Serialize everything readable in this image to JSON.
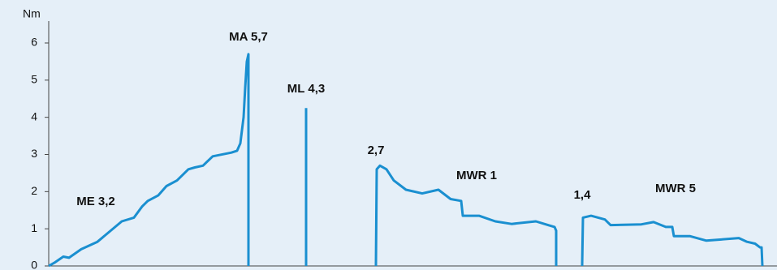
{
  "chart_data": {
    "type": "line",
    "y_label": "Nm",
    "annotations": [
      "MA 5,7",
      "ML 4,3",
      "2,7",
      "MWR 1",
      "1,4",
      "MWR 5",
      "ME 3,2"
    ],
    "x": [
      0,
      8,
      18,
      25,
      40,
      60,
      90,
      105,
      115,
      122,
      135,
      145,
      158,
      172,
      180,
      190,
      202,
      225,
      232,
      236,
      240,
      242,
      244,
      246,
      246,
      null,
      317,
      317,
      null,
      403,
      404,
      408,
      416,
      425,
      440,
      460,
      480,
      495,
      508,
      510,
      530,
      550,
      570,
      600,
      615,
      623,
      625,
      625,
      null,
      657,
      658,
      668,
      685,
      692,
      730,
      745,
      760,
      768,
      770,
      790,
      810,
      850,
      860,
      870,
      876,
      878,
      879
    ],
    "series": [
      {
        "name": null,
        "color": "#1a8fd0",
        "values": [
          0,
          0.1,
          0.25,
          0.22,
          0.45,
          0.65,
          1.2,
          1.3,
          1.6,
          1.75,
          1.9,
          2.15,
          2.3,
          2.6,
          2.65,
          2.7,
          2.95,
          3.05,
          3.1,
          3.3,
          4.0,
          4.8,
          5.5,
          5.7,
          0,
          null,
          0,
          4.25,
          null,
          0,
          2.6,
          2.7,
          2.6,
          2.3,
          2.05,
          1.95,
          2.05,
          1.8,
          1.75,
          1.35,
          1.35,
          1.2,
          1.13,
          1.2,
          1.1,
          1.05,
          0.95,
          0,
          null,
          0,
          1.3,
          1.35,
          1.25,
          1.1,
          1.12,
          1.18,
          1.05,
          1.05,
          0.8,
          0.8,
          0.68,
          0.75,
          0.65,
          0.6,
          0.5,
          0.5,
          0
        ]
      }
    ],
    "xlim": [
      0,
      897
    ],
    "ylim": [
      0,
      6
    ],
    "yticks": [
      0,
      1,
      2,
      3,
      4,
      5,
      6
    ]
  }
}
